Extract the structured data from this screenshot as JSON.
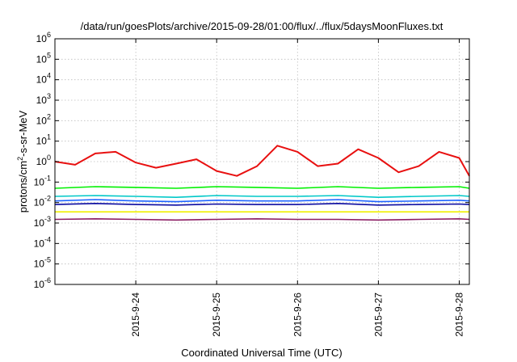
{
  "chart_data": {
    "type": "line",
    "title": "/data/run/goesPlots/archive/2015-09-28/01:00/flux/../flux/5daysMoonFluxes.txt",
    "xlabel": "Coordinated Universal Time (UTC)",
    "ylabel_parts": [
      "protons/cm",
      "2",
      "-s-sr-MeV"
    ],
    "x_range": [
      "2015-09-23T00:00",
      "2015-09-28T03:00"
    ],
    "x_ticks": [
      "2015-9-24",
      "2015-9-25",
      "2015-9-26",
      "2015-9-27",
      "2015-9-28"
    ],
    "y_scale": "log",
    "y_range": [
      1e-06,
      1000000.0
    ],
    "y_ticks": [
      {
        "base": "10",
        "exp": "-6"
      },
      {
        "base": "10",
        "exp": "-5"
      },
      {
        "base": "10",
        "exp": "-4"
      },
      {
        "base": "10",
        "exp": "-3"
      },
      {
        "base": "10",
        "exp": "-2"
      },
      {
        "base": "10",
        "exp": "-1"
      },
      {
        "base": "10",
        "exp": "0"
      },
      {
        "base": "10",
        "exp": "1"
      },
      {
        "base": "10",
        "exp": "2"
      },
      {
        "base": "10",
        "exp": "3"
      },
      {
        "base": "10",
        "exp": "4"
      },
      {
        "base": "10",
        "exp": "5"
      },
      {
        "base": "10",
        "exp": "6"
      }
    ],
    "grid": true,
    "legend": "none",
    "series": [
      {
        "color": "#e81010",
        "x": [
          "2015-09-23T00:00",
          "2015-09-23T06:00",
          "2015-09-23T12:00",
          "2015-09-23T18:00",
          "2015-09-24T00:00",
          "2015-09-24T06:00",
          "2015-09-24T12:00",
          "2015-09-24T18:00",
          "2015-09-25T00:00",
          "2015-09-25T06:00",
          "2015-09-25T12:00",
          "2015-09-25T18:00",
          "2015-09-26T00:00",
          "2015-09-26T06:00",
          "2015-09-26T12:00",
          "2015-09-26T18:00",
          "2015-09-27T00:00",
          "2015-09-27T06:00",
          "2015-09-27T12:00",
          "2015-09-27T18:00",
          "2015-09-28T00:00",
          "2015-09-28T03:00"
        ],
        "y": [
          1.0,
          0.7,
          2.5,
          3.0,
          0.9,
          0.5,
          0.8,
          1.3,
          0.35,
          0.2,
          0.6,
          6.0,
          3.0,
          0.6,
          0.8,
          4.0,
          1.5,
          0.3,
          0.6,
          3.0,
          1.5,
          0.2
        ]
      },
      {
        "color": "#00f000",
        "x": [
          "2015-09-23T00:00",
          "2015-09-23T12:00",
          "2015-09-24T00:00",
          "2015-09-24T12:00",
          "2015-09-25T00:00",
          "2015-09-25T12:00",
          "2015-09-26T00:00",
          "2015-09-26T12:00",
          "2015-09-27T00:00",
          "2015-09-27T12:00",
          "2015-09-28T00:00",
          "2015-09-28T03:00"
        ],
        "y": [
          0.05,
          0.06,
          0.055,
          0.05,
          0.06,
          0.055,
          0.05,
          0.06,
          0.05,
          0.055,
          0.06,
          0.05
        ]
      },
      {
        "color": "#00c8c8",
        "x": [
          "2015-09-23T00:00",
          "2015-09-23T12:00",
          "2015-09-24T00:00",
          "2015-09-24T12:00",
          "2015-09-25T00:00",
          "2015-09-25T12:00",
          "2015-09-26T00:00",
          "2015-09-26T12:00",
          "2015-09-27T00:00",
          "2015-09-27T12:00",
          "2015-09-28T00:00",
          "2015-09-28T03:00"
        ],
        "y": [
          0.02,
          0.022,
          0.02,
          0.018,
          0.022,
          0.02,
          0.02,
          0.022,
          0.018,
          0.02,
          0.022,
          0.02
        ]
      },
      {
        "color": "#1e64ff",
        "x": [
          "2015-09-23T00:00",
          "2015-09-23T12:00",
          "2015-09-24T00:00",
          "2015-09-24T12:00",
          "2015-09-25T00:00",
          "2015-09-25T12:00",
          "2015-09-26T00:00",
          "2015-09-26T12:00",
          "2015-09-27T00:00",
          "2015-09-27T12:00",
          "2015-09-28T00:00",
          "2015-09-28T03:00"
        ],
        "y": [
          0.012,
          0.014,
          0.012,
          0.011,
          0.013,
          0.012,
          0.012,
          0.014,
          0.011,
          0.012,
          0.013,
          0.012
        ]
      },
      {
        "color": "#0a0aa0",
        "x": [
          "2015-09-23T00:00",
          "2015-09-23T12:00",
          "2015-09-24T00:00",
          "2015-09-24T12:00",
          "2015-09-25T00:00",
          "2015-09-25T12:00",
          "2015-09-26T00:00",
          "2015-09-26T12:00",
          "2015-09-27T00:00",
          "2015-09-27T12:00",
          "2015-09-28T00:00",
          "2015-09-28T03:00"
        ],
        "y": [
          0.008,
          0.009,
          0.008,
          0.0075,
          0.0085,
          0.008,
          0.008,
          0.009,
          0.0075,
          0.008,
          0.0085,
          0.008
        ]
      },
      {
        "color": "#f0f000",
        "x": [
          "2015-09-23T00:00",
          "2015-09-23T12:00",
          "2015-09-24T00:00",
          "2015-09-24T12:00",
          "2015-09-25T00:00",
          "2015-09-25T12:00",
          "2015-09-26T00:00",
          "2015-09-26T12:00",
          "2015-09-27T00:00",
          "2015-09-27T12:00",
          "2015-09-28T00:00",
          "2015-09-28T03:00"
        ],
        "y": [
          0.0035,
          0.0035,
          0.0035,
          0.0035,
          0.0035,
          0.0035,
          0.0035,
          0.0035,
          0.0035,
          0.0035,
          0.0035,
          0.0035
        ]
      },
      {
        "color": "#8c1e64",
        "x": [
          "2015-09-23T00:00",
          "2015-09-23T12:00",
          "2015-09-24T00:00",
          "2015-09-24T12:00",
          "2015-09-25T00:00",
          "2015-09-25T12:00",
          "2015-09-26T00:00",
          "2015-09-26T12:00",
          "2015-09-27T00:00",
          "2015-09-27T12:00",
          "2015-09-28T00:00",
          "2015-09-28T03:00"
        ],
        "y": [
          0.0015,
          0.0016,
          0.0015,
          0.0014,
          0.0015,
          0.0016,
          0.0015,
          0.0015,
          0.0014,
          0.0015,
          0.0016,
          0.0015
        ]
      }
    ]
  }
}
